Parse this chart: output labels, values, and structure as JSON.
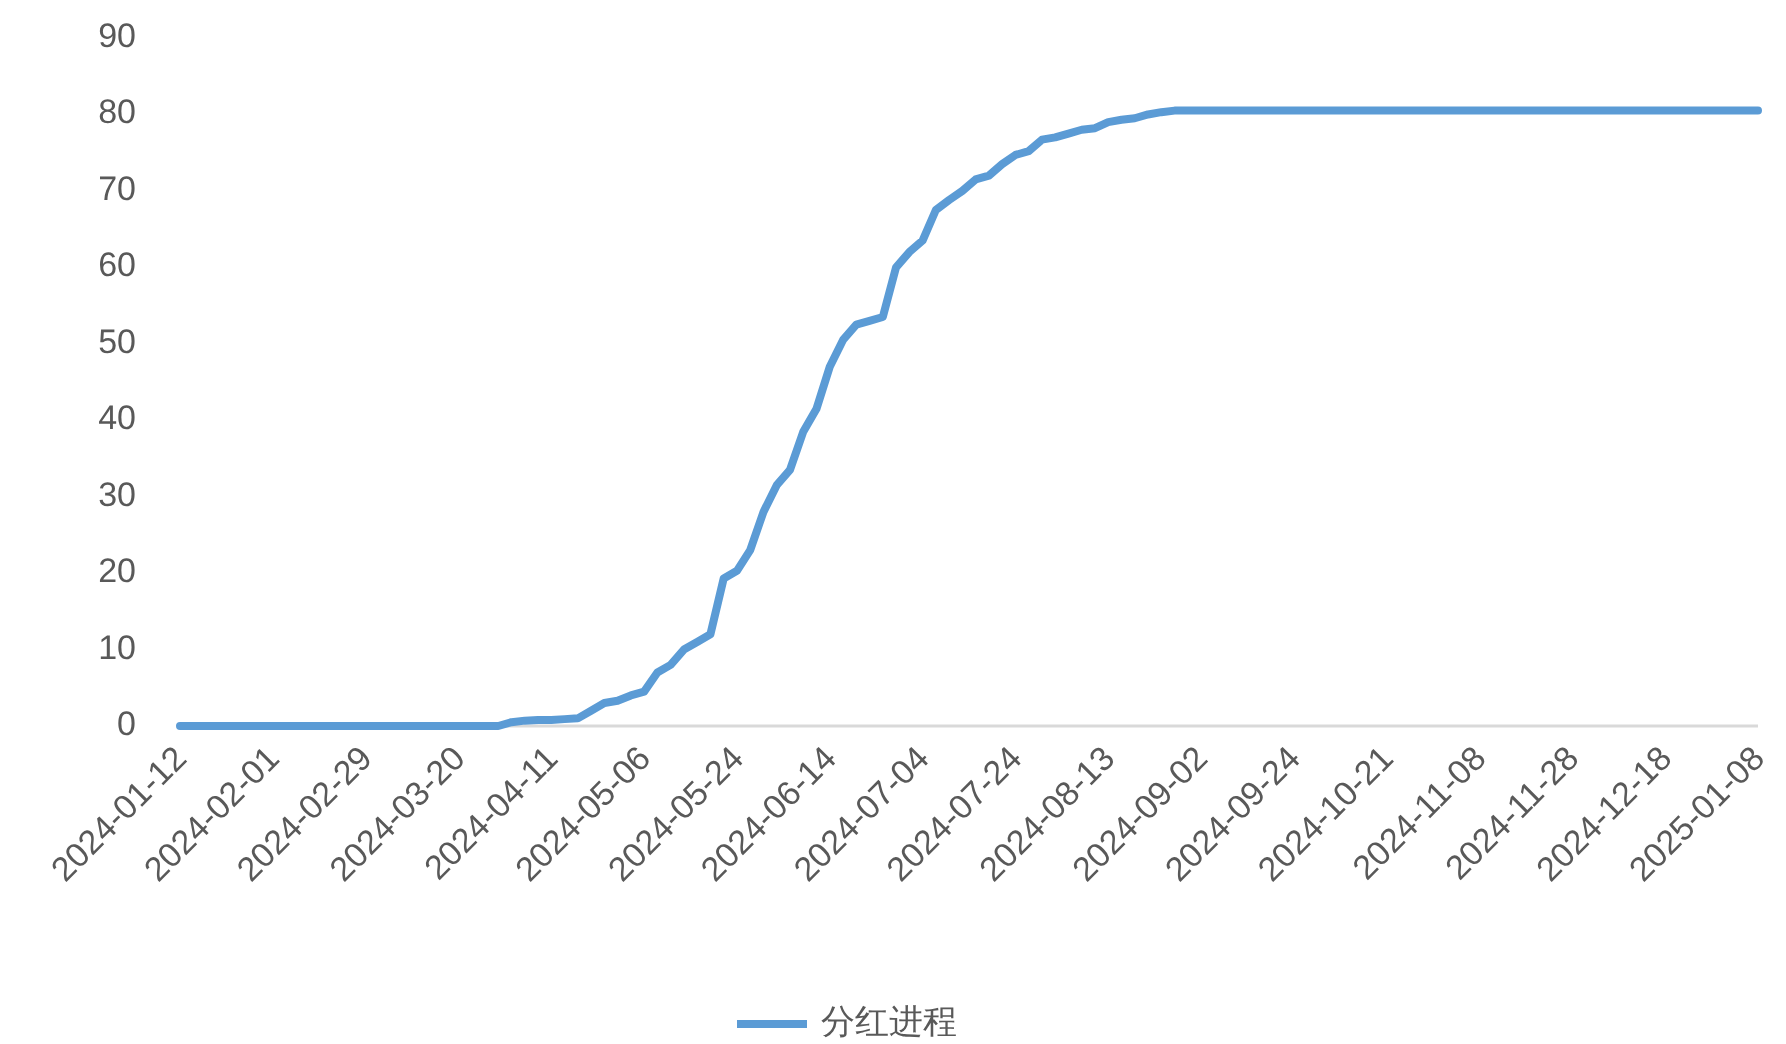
{
  "chart_data": {
    "type": "line",
    "categories": [
      "2024-01-12",
      null,
      null,
      null,
      null,
      null,
      null,
      "2024-02-01",
      null,
      null,
      null,
      null,
      null,
      null,
      "2024-02-29",
      null,
      null,
      null,
      null,
      null,
      null,
      "2024-03-20",
      null,
      null,
      null,
      null,
      null,
      null,
      "2024-04-11",
      null,
      null,
      null,
      null,
      null,
      null,
      "2024-05-06",
      null,
      null,
      null,
      null,
      null,
      null,
      "2024-05-24",
      null,
      null,
      null,
      null,
      null,
      null,
      "2024-06-14",
      null,
      null,
      null,
      null,
      null,
      null,
      "2024-07-04",
      null,
      null,
      null,
      null,
      null,
      null,
      "2024-07-24",
      null,
      null,
      null,
      null,
      null,
      null,
      "2024-08-13",
      null,
      null,
      null,
      null,
      null,
      null,
      "2024-09-02",
      null,
      null,
      null,
      null,
      null,
      null,
      "2024-09-24",
      null,
      null,
      null,
      null,
      null,
      null,
      "2024-10-21",
      null,
      null,
      null,
      null,
      null,
      null,
      "2024-11-08",
      null,
      null,
      null,
      null,
      null,
      null,
      "2024-11-28",
      null,
      null,
      null,
      null,
      null,
      null,
      "2024-12-18",
      null,
      null,
      null,
      null,
      null,
      null,
      "2025-01-08"
    ],
    "series": [
      {
        "name": "分红进程",
        "color": "#5b9bd5",
        "values": [
          0,
          0,
          0,
          0,
          0,
          0,
          0,
          0,
          0,
          0,
          0,
          0,
          0,
          0,
          0,
          0,
          0,
          0,
          0,
          0,
          0,
          0,
          0,
          0,
          0,
          0.5,
          0.7,
          0.8,
          0.8,
          0.9,
          1,
          2,
          3,
          3.3,
          4,
          4.5,
          7,
          8,
          10,
          11,
          12,
          19.3,
          20.3,
          23,
          28,
          31.5,
          33.5,
          38.5,
          41.5,
          47,
          50.5,
          52.5,
          53,
          53.5,
          60,
          62,
          63.5,
          67.5,
          68.8,
          70,
          71.5,
          72,
          73.5,
          74.7,
          75.2,
          76.7,
          77,
          77.5,
          78,
          78.2,
          79,
          79.3,
          79.5,
          80,
          80.3,
          80.5,
          80.5,
          80.5,
          80.5,
          80.5,
          80.5,
          80.5,
          80.5,
          80.5,
          80.5,
          80.5,
          80.5,
          80.5,
          80.5,
          80.5,
          80.5,
          80.5,
          80.5,
          80.5,
          80.5,
          80.5,
          80.5,
          80.5,
          80.5,
          80.5,
          80.5,
          80.5,
          80.5,
          80.5,
          80.5,
          80.5,
          80.5,
          80.5,
          80.5,
          80.5,
          80.5,
          80.5,
          80.5,
          80.5,
          80.5,
          80.5,
          80.5,
          80.5,
          80.5,
          80.5
        ]
      }
    ],
    "ylim": [
      0,
      90
    ],
    "yticks": [
      0,
      10,
      20,
      30,
      40,
      50,
      60,
      70,
      80,
      90
    ],
    "legend": "bottom",
    "line_style": "solid"
  }
}
